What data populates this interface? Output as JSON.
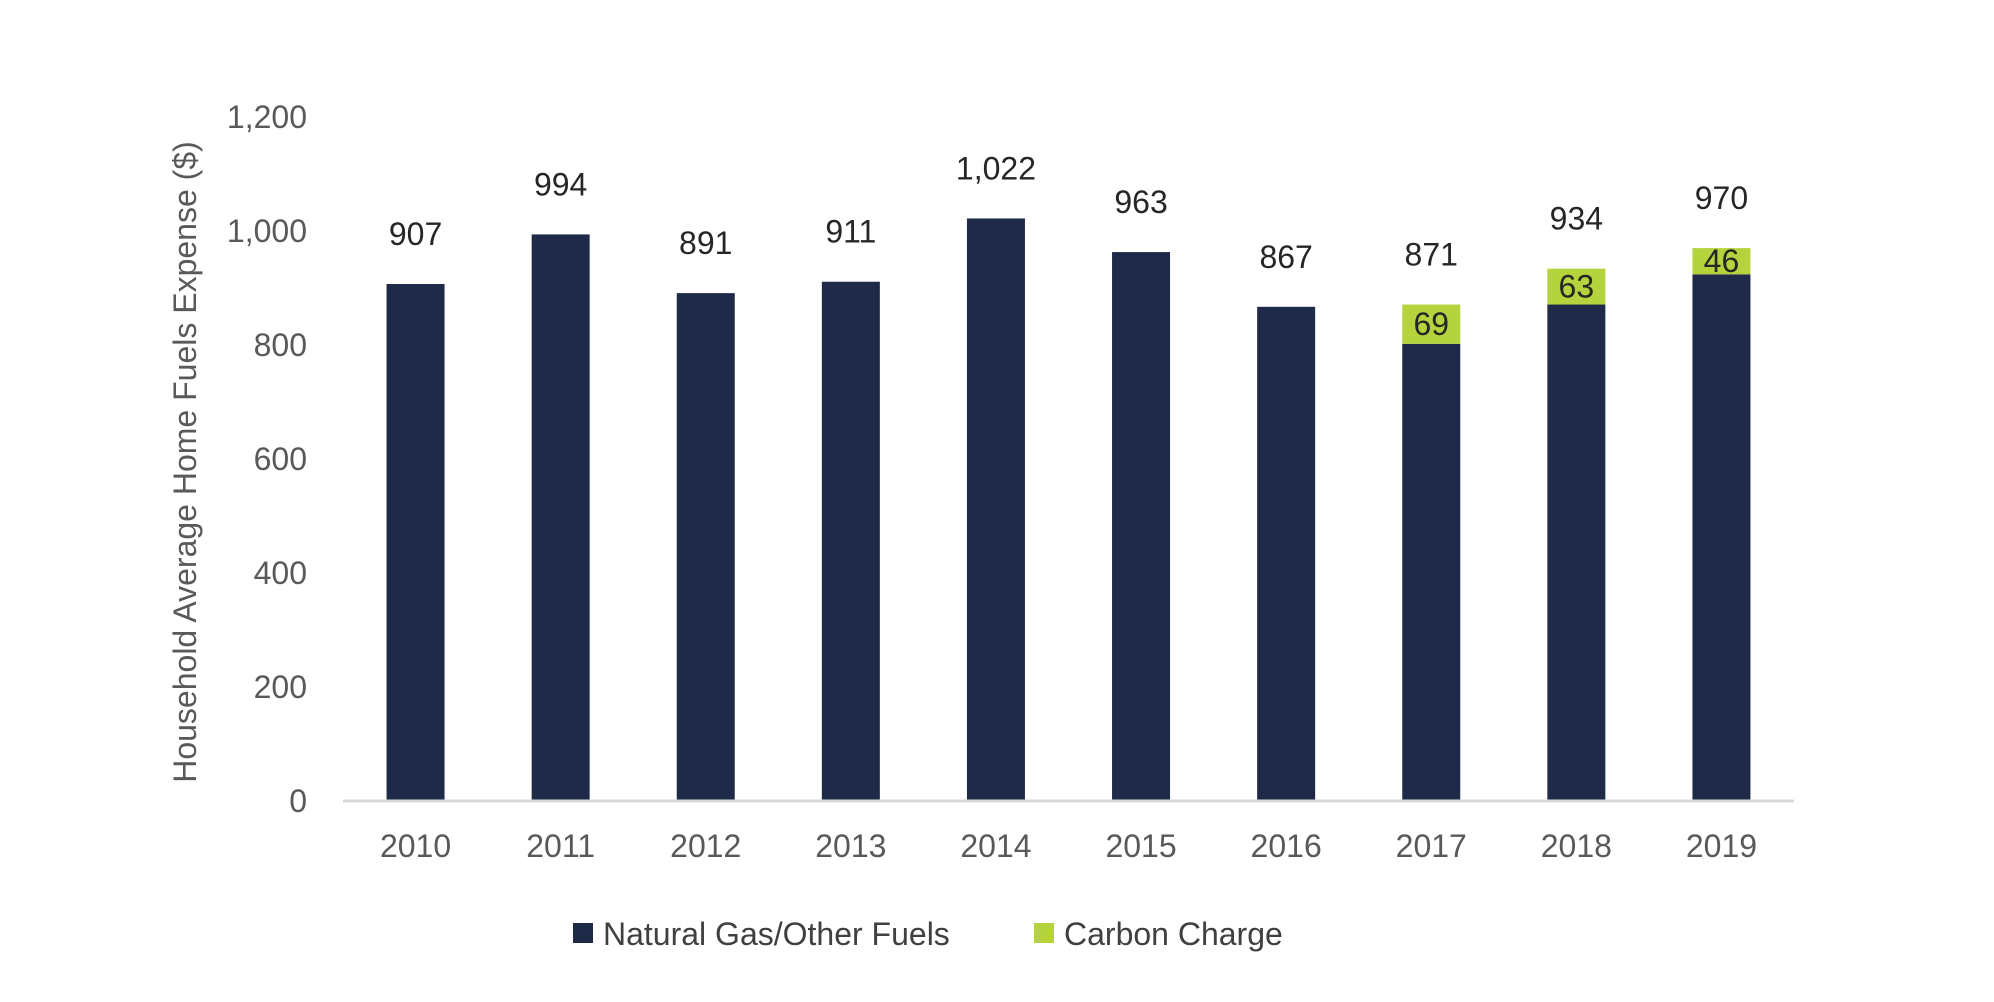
{
  "chart_data": {
    "type": "bar",
    "stacked": true,
    "categories": [
      "2010",
      "2011",
      "2012",
      "2013",
      "2014",
      "2015",
      "2016",
      "2017",
      "2018",
      "2019"
    ],
    "series": [
      {
        "name": "Natural Gas/Other Fuels",
        "color": "#1f2a48",
        "values": [
          907,
          994,
          891,
          911,
          1022,
          963,
          867,
          802,
          871,
          924
        ]
      },
      {
        "name": "Carbon Charge",
        "color": "#b5d33d",
        "values": [
          0,
          0,
          0,
          0,
          0,
          0,
          0,
          69,
          63,
          46
        ]
      }
    ],
    "total_labels": [
      "907",
      "994",
      "891",
      "911",
      "1,022",
      "963",
      "867",
      "871",
      "934",
      "970"
    ],
    "segment_labels": [
      "",
      "",
      "",
      "",
      "",
      "",
      "",
      "69",
      "63",
      "46"
    ],
    "ylabel": "Household Average Home Fuels Expense ($)",
    "ylim": [
      0,
      1200
    ],
    "yticks": [
      0,
      200,
      400,
      600,
      800,
      1000,
      1200
    ],
    "ytick_labels": [
      "0",
      "200",
      "400",
      "600",
      "800",
      "1,000",
      "1,200"
    ],
    "grid": false,
    "legend_position": "bottom"
  }
}
